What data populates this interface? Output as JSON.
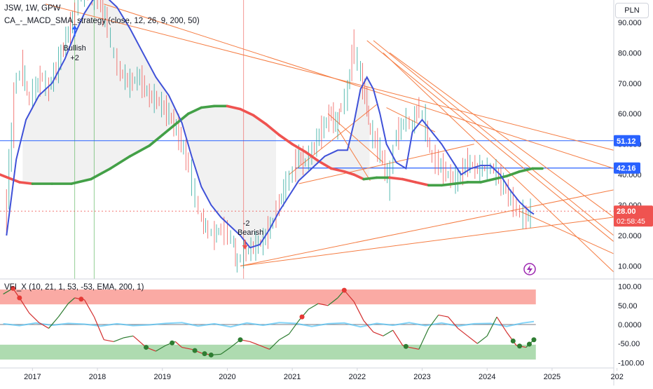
{
  "header": {
    "symbol_line": "JSW, 1W, GPW",
    "strategy_line": "CA_-_MACD_SMA_strategy (close, 12, 26, 9, 200, 50)",
    "indicator_line": "VFI_X (10, 21, 1, 53, -53, EMA, 200, 1)",
    "currency_button": "PLN"
  },
  "colors": {
    "price_up": "#26a69a",
    "price_down": "#ef5350",
    "fast_ma": "#3f51d8",
    "sma_bull": "#43a047",
    "sma_bear": "#ef5350",
    "trendline": "#f57c42",
    "hline": "#2962ff",
    "osc_top_zone": "#f44336",
    "osc_bottom_zone": "#4caf50",
    "last_price_label": "#ef5350"
  },
  "price_labels": {
    "last_price": "28.00",
    "countdown": "02:58:45",
    "level_upper": "51.12",
    "level_lower": "42.16"
  },
  "annotations": {
    "bullish_signal": {
      "text": "Bullish",
      "value": "+2"
    },
    "bearish_signal": {
      "text": "Bearish",
      "value": "-2"
    }
  },
  "icons": {
    "alert": "lightning-icon"
  },
  "chart_data": [
    {
      "type": "line",
      "title": "JSW, 1W, GPW",
      "xlabel": "",
      "ylabel": "",
      "x_ticks": [
        "2017",
        "2018",
        "2019",
        "2020",
        "2021",
        "2022",
        "2023",
        "2024",
        "2025",
        "202"
      ],
      "ylim": [
        7,
        96
      ],
      "y_ticks": [
        "10.000",
        "20.000",
        "30.000",
        "40.000",
        "50.000",
        "60.000",
        "70.000",
        "80.000",
        "90.000"
      ],
      "grid": false,
      "series": [
        {
          "kind": "price",
          "x": [
            2016.6,
            2016.75,
            2016.85,
            2016.95,
            2017.05,
            2017.15,
            2017.25,
            2017.4,
            2017.55,
            2017.65,
            2017.75,
            2017.85,
            2017.95,
            2018.05,
            2018.15,
            2018.25,
            2018.35,
            2018.5,
            2018.65,
            2018.8,
            2018.95,
            2019.1,
            2019.25,
            2019.4,
            2019.5,
            2019.6,
            2019.7,
            2019.8,
            2019.9,
            2020.0,
            2020.1,
            2020.15,
            2020.25,
            2020.4,
            2020.55,
            2020.7,
            2020.8,
            2020.9,
            2021.0,
            2021.1,
            2021.2,
            2021.3,
            2021.45,
            2021.6,
            2021.7,
            2021.75,
            2021.85,
            2021.95,
            2022.05,
            2022.15,
            2022.2,
            2022.35,
            2022.5,
            2022.6,
            2022.75,
            2022.85,
            2022.95,
            2023.05,
            2023.15,
            2023.25,
            2023.4,
            2023.55,
            2023.7,
            2023.85,
            2024.0,
            2024.1,
            2024.25,
            2024.4,
            2024.5,
            2024.6,
            2024.7
          ],
          "y": [
            28,
            70,
            75,
            65,
            68,
            72,
            68,
            76,
            86,
            92,
            98,
            100,
            99,
            96,
            90,
            80,
            74,
            70,
            72,
            66,
            64,
            60,
            54,
            44,
            34,
            26,
            22,
            20,
            22,
            21,
            18,
            11,
            14,
            16,
            18,
            24,
            30,
            36,
            40,
            46,
            44,
            47,
            54,
            60,
            56,
            62,
            66,
            82,
            74,
            64,
            55,
            48,
            38,
            52,
            58,
            56,
            62,
            57,
            46,
            44,
            40,
            38,
            44,
            42,
            42,
            42,
            37,
            31,
            28,
            26,
            28
          ]
        },
        {
          "name": "",
          "kind": "fast_ma",
          "x": [
            2016.6,
            2016.75,
            2016.9,
            2017.1,
            2017.3,
            2017.5,
            2017.65,
            2017.8,
            2017.95,
            2018.1,
            2018.3,
            2018.5,
            2018.7,
            2018.9,
            2019.1,
            2019.3,
            2019.45,
            2019.6,
            2019.75,
            2019.9,
            2020.05,
            2020.2,
            2020.35,
            2020.5,
            2020.65,
            2020.8,
            2020.95,
            2021.1,
            2021.3,
            2021.5,
            2021.7,
            2021.85,
            2021.95,
            2022.05,
            2022.15,
            2022.25,
            2022.35,
            2022.45,
            2022.6,
            2022.75,
            2022.85,
            2023.0,
            2023.15,
            2023.3,
            2023.45,
            2023.6,
            2023.75,
            2023.9,
            2024.05,
            2024.2,
            2024.35,
            2024.5,
            2024.65,
            2024.72
          ],
          "y": [
            20,
            45,
            58,
            66,
            70,
            78,
            86,
            93,
            98,
            99,
            95,
            88,
            80,
            72,
            66,
            57,
            46,
            36,
            30,
            26,
            23,
            20,
            16,
            17,
            22,
            28,
            33,
            38,
            42,
            46,
            48,
            48,
            57,
            68,
            72,
            68,
            60,
            50,
            44,
            42,
            54,
            58,
            54,
            50,
            45,
            40,
            42,
            43,
            43,
            40,
            35,
            31,
            28,
            27
          ]
        },
        {
          "name": "",
          "kind": "slow_sma",
          "x": [
            2016.5,
            2016.8,
            2017.0,
            2017.3,
            2017.6,
            2017.9,
            2018.2,
            2018.5,
            2018.8,
            2019.0,
            2019.2,
            2019.4,
            2019.6,
            2019.8,
            2020.0,
            2020.2,
            2020.4,
            2020.6,
            2020.8,
            2021.0,
            2021.2,
            2021.4,
            2021.6,
            2021.8,
            2021.95,
            2022.1,
            2022.3,
            2022.5,
            2022.7,
            2022.9,
            2023.1,
            2023.3,
            2023.5,
            2023.7,
            2023.9,
            2024.1,
            2024.3,
            2024.5,
            2024.7,
            2024.85
          ],
          "y": [
            40,
            37.5,
            37,
            37,
            37,
            38.5,
            42,
            46,
            49.5,
            53,
            56.5,
            60,
            62,
            62.5,
            62.5,
            61.5,
            59.5,
            56.5,
            53,
            50,
            47.5,
            44.5,
            42,
            41,
            40,
            38.5,
            39,
            39,
            38.5,
            37.5,
            36.5,
            36.5,
            37,
            37.5,
            37.5,
            38.5,
            39.5,
            41,
            42,
            42
          ]
        }
      ],
      "horizontal_levels": [
        51.12,
        42.16
      ],
      "last_price": 28.0,
      "signals": [
        {
          "x": 2017.65,
          "label": "Bullish +2"
        },
        {
          "x": 2020.25,
          "label": "-2 Bearish"
        }
      ]
    },
    {
      "type": "line",
      "title": "VFI_X (10, 21, 1, 53, -53, EMA, 200, 1)",
      "x_ticks": [
        "2017",
        "2018",
        "2019",
        "2020",
        "2021",
        "2022",
        "2023",
        "2024",
        "2025",
        "202"
      ],
      "ylim": [
        -110,
        110
      ],
      "y_ticks": [
        "100.00",
        "50.00",
        "0.0000",
        "-50.00",
        "-100.00"
      ],
      "thresholds": [
        53,
        -53
      ],
      "grid": false,
      "series": [
        {
          "name": "",
          "kind": "vfi",
          "x": [
            2016.55,
            2016.7,
            2016.8,
            2016.95,
            2017.1,
            2017.25,
            2017.4,
            2017.55,
            2017.65,
            2017.8,
            2017.95,
            2018.1,
            2018.25,
            2018.4,
            2018.55,
            2018.75,
            2018.9,
            2019.05,
            2019.2,
            2019.3,
            2019.45,
            2019.6,
            2019.75,
            2019.9,
            2020.05,
            2020.2,
            2020.35,
            2020.5,
            2020.65,
            2020.8,
            2020.95,
            2021.1,
            2021.25,
            2021.4,
            2021.55,
            2021.7,
            2021.8,
            2021.95,
            2022.1,
            2022.25,
            2022.4,
            2022.55,
            2022.7,
            2022.8,
            2022.95,
            2023.1,
            2023.25,
            2023.4,
            2023.55,
            2023.7,
            2023.85,
            2024.0,
            2024.15,
            2024.3,
            2024.45,
            2024.6,
            2024.72
          ],
          "y": [
            80,
            95,
            70,
            30,
            5,
            -10,
            20,
            55,
            70,
            65,
            20,
            -40,
            -45,
            -35,
            -30,
            -60,
            -70,
            -55,
            -45,
            -60,
            -65,
            -75,
            -80,
            -78,
            -60,
            -40,
            -45,
            -55,
            -65,
            -40,
            -25,
            10,
            40,
            55,
            50,
            70,
            90,
            60,
            10,
            -20,
            -30,
            -15,
            -55,
            -60,
            -65,
            -10,
            25,
            20,
            -10,
            -30,
            -50,
            -30,
            20,
            -20,
            -55,
            -60,
            -40
          ]
        },
        {
          "name": "",
          "kind": "vfi_histogram",
          "x": [
            2016.55,
            2016.8,
            2017.05,
            2017.3,
            2017.55,
            2017.8,
            2018.05,
            2018.3,
            2018.55,
            2018.8,
            2019.05,
            2019.3,
            2019.55,
            2019.8,
            2020.05,
            2020.3,
            2020.55,
            2020.8,
            2021.05,
            2021.3,
            2021.55,
            2021.8,
            2022.05,
            2022.3,
            2022.55,
            2022.8,
            2023.05,
            2023.3,
            2023.55,
            2023.8,
            2024.05,
            2024.3,
            2024.55,
            2024.72
          ],
          "y": [
            2,
            -3,
            4,
            -2,
            3,
            1,
            -4,
            2,
            -3,
            -1,
            3,
            5,
            -4,
            2,
            -6,
            4,
            -2,
            5,
            3,
            -5,
            2,
            4,
            -6,
            3,
            -2,
            5,
            -3,
            4,
            -4,
            2,
            3,
            -5,
            4,
            8
          ]
        }
      ],
      "markers": [
        {
          "x": 2016.7,
          "kind": "top"
        },
        {
          "x": 2016.8,
          "kind": "top"
        },
        {
          "x": 2017.75,
          "kind": "top"
        },
        {
          "x": 2018.75,
          "kind": "bottom"
        },
        {
          "x": 2019.15,
          "kind": "bottom"
        },
        {
          "x": 2019.5,
          "kind": "bottom"
        },
        {
          "x": 2019.65,
          "kind": "bottom"
        },
        {
          "x": 2019.75,
          "kind": "bottom"
        },
        {
          "x": 2020.2,
          "kind": "bottom"
        },
        {
          "x": 2021.15,
          "kind": "top"
        },
        {
          "x": 2021.8,
          "kind": "top"
        },
        {
          "x": 2022.75,
          "kind": "bottom"
        },
        {
          "x": 2024.4,
          "kind": "bottom"
        },
        {
          "x": 2024.5,
          "kind": "bottom"
        },
        {
          "x": 2024.65,
          "kind": "bottom"
        },
        {
          "x": 2024.72,
          "kind": "bottom"
        }
      ]
    }
  ]
}
